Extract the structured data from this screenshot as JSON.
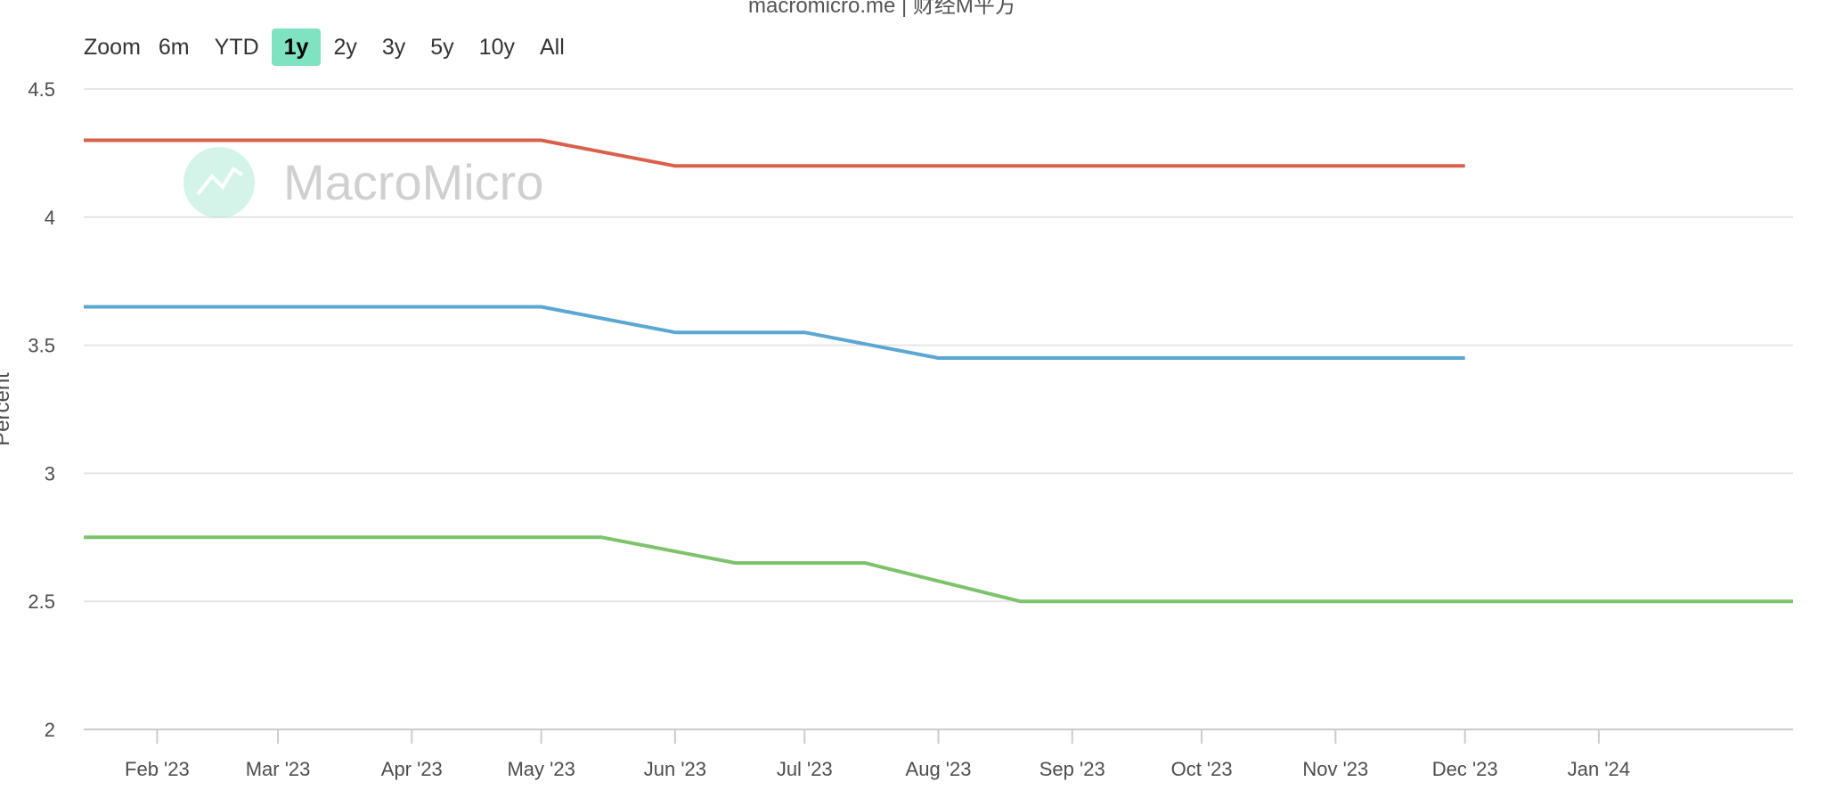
{
  "header": {
    "title_fragment": "macromicro.me | 财经M平方"
  },
  "range_selector": {
    "zoom_label": "Zoom",
    "buttons": [
      "6m",
      "YTD",
      "1y",
      "2y",
      "3y",
      "5y",
      "10y",
      "All"
    ],
    "active": "1y"
  },
  "watermark": {
    "text": "MacroMicro",
    "logo_color": "#b8ecdc"
  },
  "chart_data": {
    "type": "line",
    "ylabel": "Percent",
    "ylim": [
      2,
      4.5
    ],
    "yticks": [
      2,
      2.5,
      3,
      3.5,
      4,
      4.5
    ],
    "ytick_labels": [
      "2",
      "2.5",
      "3",
      "3.5",
      "4",
      "4.5"
    ],
    "xlim": [
      "2023-01-15",
      "2024-02-15"
    ],
    "xticks": [
      "2023-02-01",
      "2023-03-01",
      "2023-04-01",
      "2023-05-01",
      "2023-06-01",
      "2023-07-01",
      "2023-08-01",
      "2023-09-01",
      "2023-10-01",
      "2023-11-01",
      "2023-12-01",
      "2024-01-01"
    ],
    "xtick_labels": [
      "Feb '23",
      "Mar '23",
      "Apr '23",
      "May '23",
      "Jun '23",
      "Jul '23",
      "Aug '23",
      "Sep '23",
      "Oct '23",
      "Nov '23",
      "Dec '23",
      "Jan '24"
    ],
    "grid": true,
    "series": [
      {
        "color": "#d9604a",
        "points": [
          [
            "2023-01-15",
            4.3
          ],
          [
            "2023-05-01",
            4.3
          ],
          [
            "2023-06-01",
            4.2
          ],
          [
            "2023-12-01",
            4.2
          ]
        ]
      },
      {
        "color": "#5ba7d4",
        "points": [
          [
            "2023-01-15",
            3.65
          ],
          [
            "2023-05-01",
            3.65
          ],
          [
            "2023-06-01",
            3.55
          ],
          [
            "2023-07-01",
            3.55
          ],
          [
            "2023-08-01",
            3.45
          ],
          [
            "2023-12-01",
            3.45
          ]
        ]
      },
      {
        "color": "#7cc36b",
        "points": [
          [
            "2023-01-15",
            2.75
          ],
          [
            "2023-05-15",
            2.75
          ],
          [
            "2023-06-15",
            2.65
          ],
          [
            "2023-07-15",
            2.65
          ],
          [
            "2023-08-20",
            2.5
          ],
          [
            "2024-02-15",
            2.5
          ]
        ]
      }
    ]
  }
}
